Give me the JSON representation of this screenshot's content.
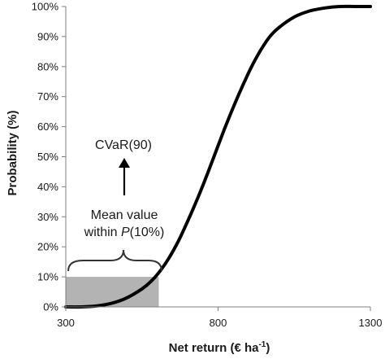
{
  "chart_data": {
    "type": "line",
    "title": "",
    "xlabel": "Net return (€ ha",
    "xlabel_sup": "-1",
    "xlabel_end": ")",
    "ylabel": "Probability (%)",
    "xlim": [
      300,
      1300
    ],
    "ylim": [
      0,
      100
    ],
    "x_ticks": [
      300,
      800,
      1300
    ],
    "x_tick_labels": [
      "300",
      "800",
      "1300"
    ],
    "y_ticks": [
      0,
      10,
      20,
      30,
      40,
      50,
      60,
      70,
      80,
      90,
      100
    ],
    "y_tick_labels": [
      "0%",
      "10%",
      "20%",
      "30%",
      "40%",
      "50%",
      "60%",
      "70%",
      "80%",
      "90%",
      "100%"
    ],
    "grid": false,
    "series": [
      {
        "x": [
          300,
          350,
          400,
          450,
          500,
          550,
          580,
          610,
          640,
          670,
          700,
          730,
          760,
          790,
          820,
          850,
          880,
          910,
          940,
          970,
          1000,
          1050,
          1100,
          1150,
          1200,
          1250,
          1300
        ],
        "y": [
          0,
          0,
          0.3,
          1.2,
          3,
          6,
          8.5,
          12,
          16.5,
          22,
          28.5,
          35.5,
          43,
          51,
          59,
          66.5,
          73.5,
          80,
          85.5,
          90,
          93,
          96.5,
          98.5,
          99.5,
          100,
          100,
          100
        ],
        "color": "#000000"
      }
    ],
    "shaded_region": {
      "x_start": 300,
      "x_end": 605,
      "y_start": 0,
      "y_end": 10,
      "color": "#b3b3b3"
    },
    "annotations": {
      "cvar_label": "CVaR(90)",
      "mean_line1": "Mean value",
      "mean_line2_prefix": "within ",
      "mean_line2_italic": "P",
      "mean_line2_suffix": "(10%)"
    }
  }
}
